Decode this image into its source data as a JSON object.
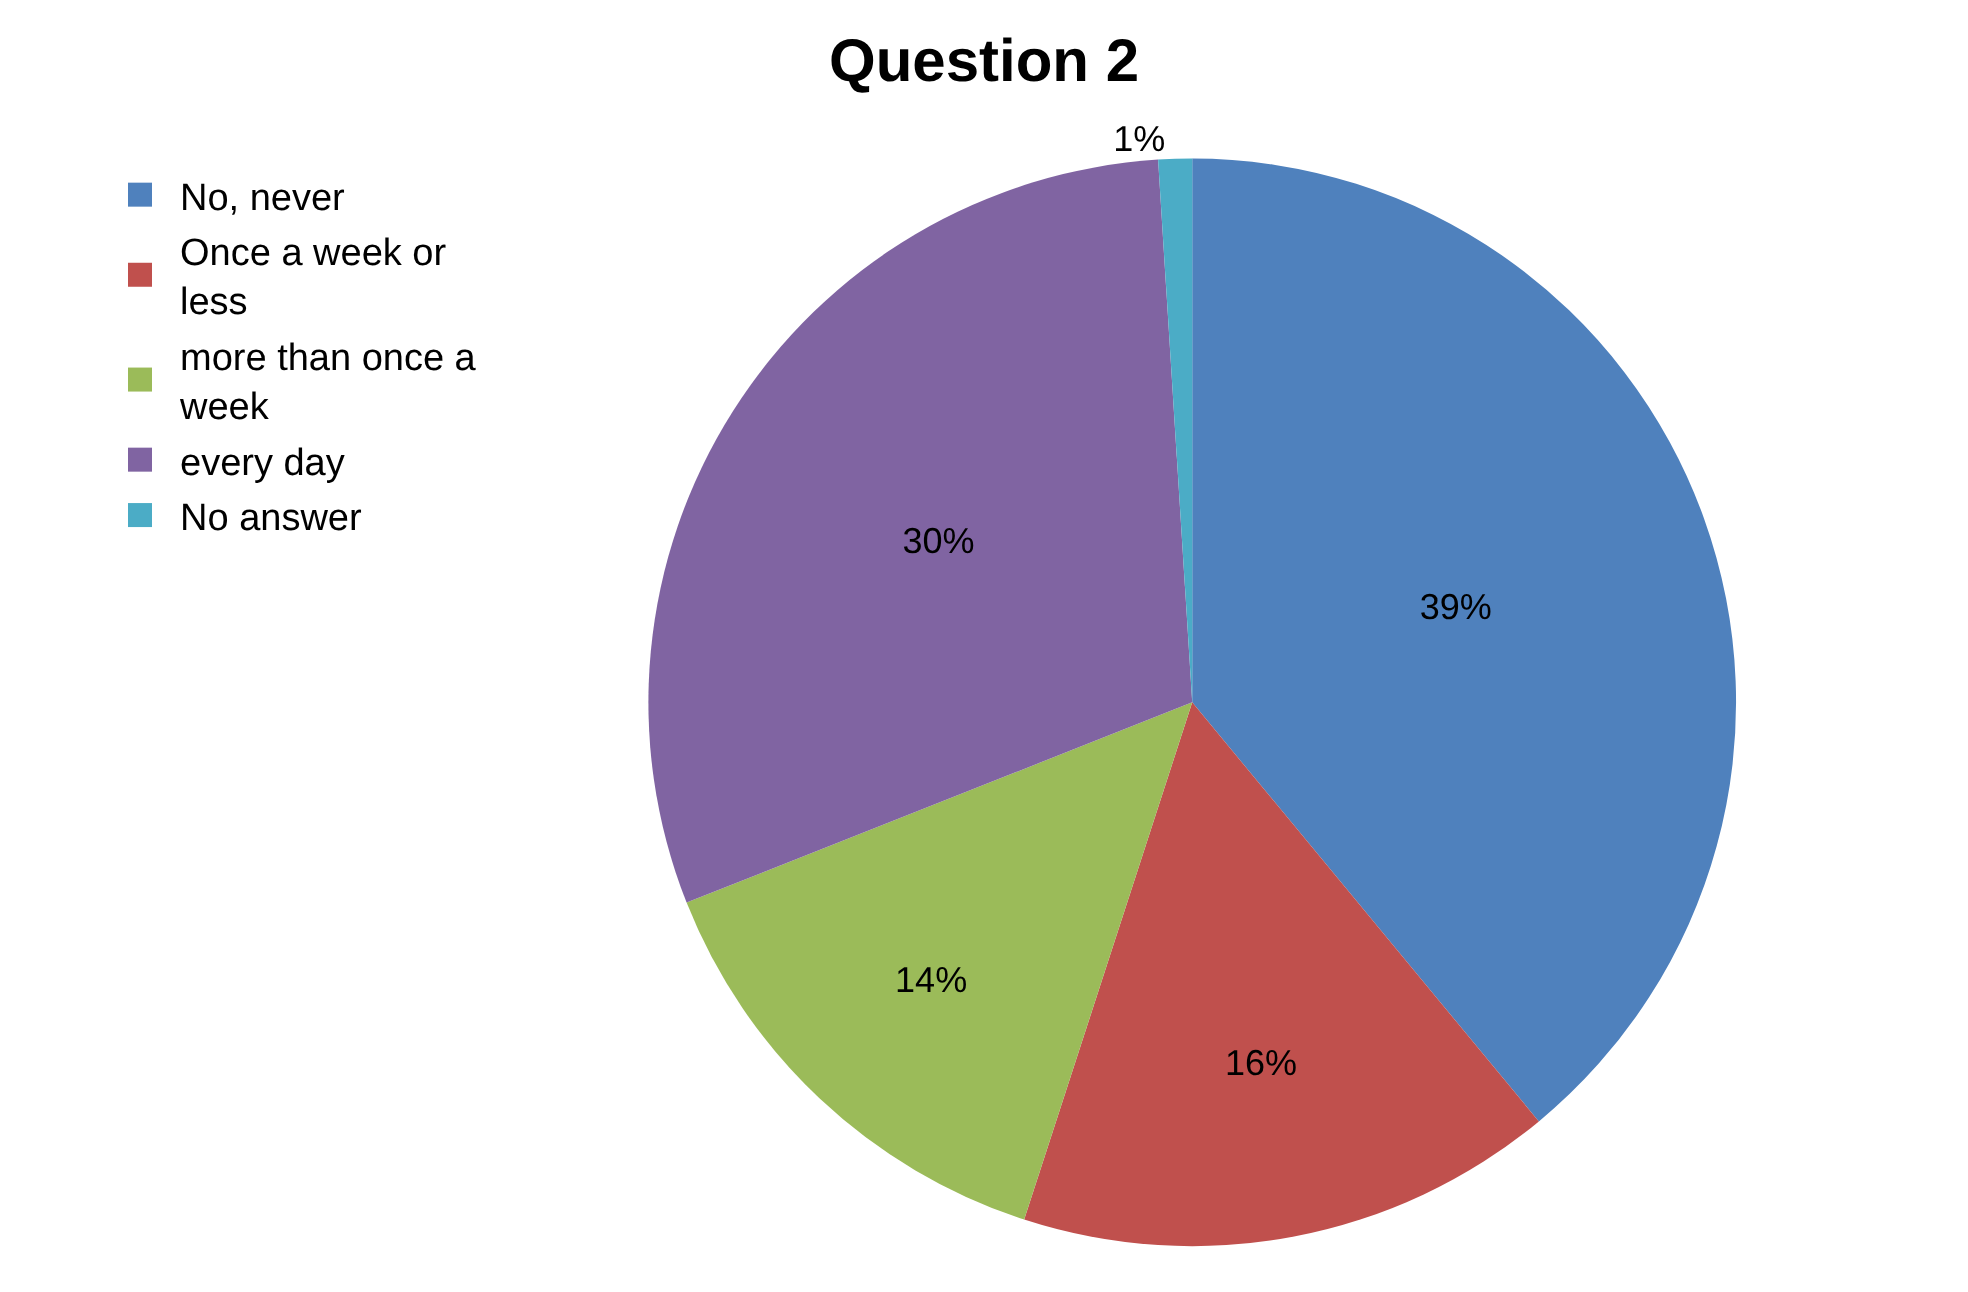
{
  "chart_data": {
    "type": "pie",
    "title": "Question 2",
    "categories": [
      "No, never",
      "Once a week or less",
      "more than once a week",
      "every day",
      "No answer"
    ],
    "values": [
      39,
      16,
      14,
      30,
      1
    ],
    "colors": [
      "#4f81bd",
      "#c0504d",
      "#9bbb59",
      "#8064a2",
      "#4bacc6"
    ],
    "value_labels": [
      "39%",
      "16%",
      "14%",
      "30%",
      "1%"
    ],
    "legend": "left"
  }
}
